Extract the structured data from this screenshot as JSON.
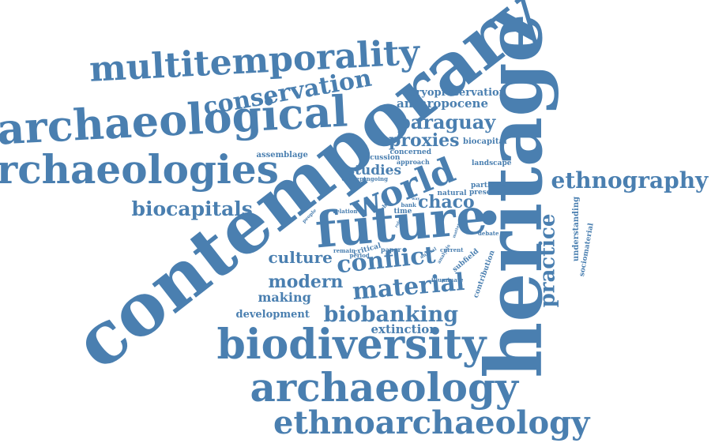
{
  "color": "#4a7fb0",
  "words": [
    {
      "text": "contemporary"
    },
    {
      "text": "heritage"
    },
    {
      "text": "future"
    },
    {
      "text": "archaeological"
    },
    {
      "text": "archaeologies"
    },
    {
      "text": "multitemporality"
    },
    {
      "text": "biodiversity"
    },
    {
      "text": "archaeology"
    },
    {
      "text": "ethnoarchaeology"
    },
    {
      "text": "conservation"
    },
    {
      "text": "world"
    },
    {
      "text": "ethnography"
    },
    {
      "text": "biocapitals"
    },
    {
      "text": "conflict"
    },
    {
      "text": "material"
    },
    {
      "text": "biobanking"
    },
    {
      "text": "practice"
    },
    {
      "text": "paraguay"
    },
    {
      "text": "proxies"
    },
    {
      "text": "modern"
    },
    {
      "text": "culture"
    },
    {
      "text": "chaco"
    },
    {
      "text": "studies"
    },
    {
      "text": "development"
    },
    {
      "text": "making"
    },
    {
      "text": "extinction"
    },
    {
      "text": "anthropocene"
    },
    {
      "text": "cryopreservation"
    },
    {
      "text": "understanding"
    },
    {
      "text": "biocapital"
    },
    {
      "text": "assemblage"
    },
    {
      "text": "landscape"
    },
    {
      "text": "concerned"
    },
    {
      "text": "discussion"
    },
    {
      "text": "approach"
    },
    {
      "text": "sociomaterial"
    },
    {
      "text": "contribution"
    },
    {
      "text": "subfield"
    },
    {
      "text": "particular"
    },
    {
      "text": "present"
    },
    {
      "text": "natural"
    },
    {
      "text": "illuminate"
    },
    {
      "text": "concept"
    },
    {
      "text": "ongoing"
    },
    {
      "text": "relation"
    },
    {
      "text": "time"
    },
    {
      "text": "debate"
    },
    {
      "text": "critical"
    },
    {
      "text": "period"
    },
    {
      "text": "paper"
    },
    {
      "text": "current"
    },
    {
      "text": "remain"
    },
    {
      "text": "global"
    },
    {
      "text": "bank"
    },
    {
      "text": "analysis"
    },
    {
      "text": "animal"
    },
    {
      "text": "matter"
    },
    {
      "text": "people"
    },
    {
      "text": "role"
    },
    {
      "text": "way"
    }
  ]
}
